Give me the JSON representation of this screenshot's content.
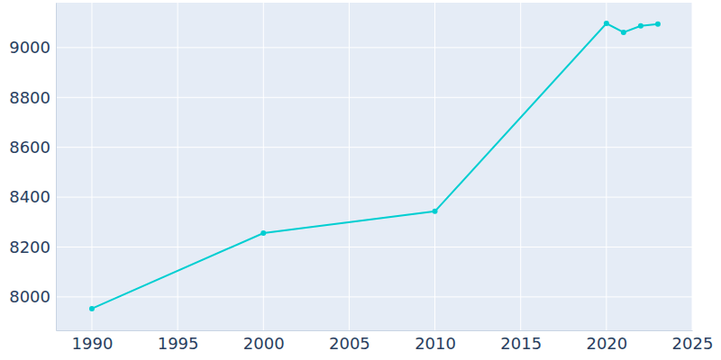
{
  "chart_data": {
    "type": "line",
    "x": [
      1990,
      2000,
      2010,
      2020,
      2021,
      2022,
      2023
    ],
    "values": [
      7953,
      8256,
      8343,
      9097,
      9061,
      9087,
      9094
    ],
    "color": "#00ced1",
    "marker": "circle",
    "xlim": [
      1987.9,
      2025
    ],
    "xticks": [
      1990,
      1995,
      2000,
      2005,
      2010,
      2015,
      2020,
      2025
    ],
    "ylim": [
      7866,
      9180
    ],
    "yticks": [
      8000,
      8200,
      8400,
      8600,
      8800,
      9000
    ],
    "grid": true
  }
}
